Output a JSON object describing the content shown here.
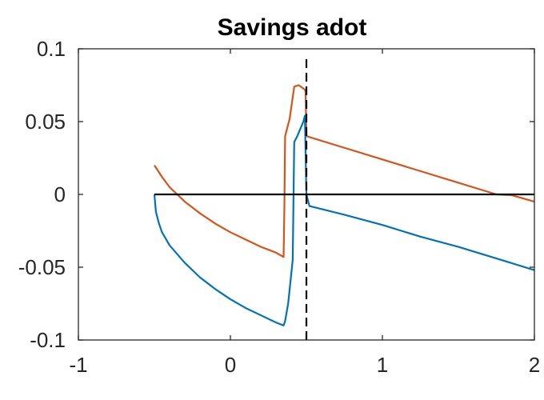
{
  "chart_data": {
    "type": "line",
    "title": "Savings adot",
    "xlabel": "",
    "ylabel": "",
    "xlim": [
      -1,
      2
    ],
    "ylim": [
      -0.1,
      0.1
    ],
    "grid": false,
    "legend": "none",
    "x_ticks": [
      -1,
      0,
      1,
      2
    ],
    "x_tick_labels": [
      "-1",
      "0",
      "1",
      "2"
    ],
    "y_ticks": [
      -0.1,
      -0.05,
      0,
      0.05,
      0.1
    ],
    "y_tick_labels": [
      "-0.1",
      "-0.05",
      "0",
      "0.05",
      "0.1"
    ],
    "series": [
      {
        "color": "#d95319",
        "x": [
          -0.5,
          -0.45,
          -0.4,
          -0.3,
          -0.2,
          -0.1,
          0.0,
          0.1,
          0.2,
          0.3,
          0.35,
          0.355,
          0.36,
          0.39,
          0.42,
          0.45,
          0.49,
          0.495,
          0.5,
          0.75,
          1.0,
          1.25,
          1.5,
          1.75,
          1.85,
          2.0
        ],
        "y": [
          0.02,
          0.012,
          0.005,
          -0.005,
          -0.013,
          -0.02,
          -0.026,
          -0.031,
          -0.036,
          -0.04,
          -0.043,
          -0.01,
          0.04,
          0.052,
          0.074,
          0.075,
          0.072,
          0.07,
          0.04,
          0.032,
          0.024,
          0.016,
          0.008,
          0.0,
          -0.0005,
          -0.005
        ]
      },
      {
        "color": "#0072bd",
        "x": [
          -0.5,
          -0.49,
          -0.47,
          -0.45,
          -0.4,
          -0.3,
          -0.2,
          -0.1,
          0.0,
          0.1,
          0.2,
          0.3,
          0.35,
          0.36,
          0.38,
          0.4,
          0.41,
          0.42,
          0.44,
          0.46,
          0.48,
          0.49,
          0.5,
          0.52,
          0.75,
          1.0,
          1.25,
          1.5,
          1.75,
          2.0
        ],
        "y": [
          0.0,
          -0.012,
          -0.02,
          -0.026,
          -0.035,
          -0.047,
          -0.057,
          -0.065,
          -0.072,
          -0.078,
          -0.083,
          -0.088,
          -0.09,
          -0.087,
          -0.075,
          -0.055,
          -0.045,
          0.036,
          0.04,
          0.045,
          0.05,
          0.054,
          0.0,
          -0.008,
          -0.014,
          -0.021,
          -0.029,
          -0.036,
          -0.044,
          -0.052
        ]
      }
    ],
    "reference_lines": [
      {
        "orientation": "horizontal",
        "value": 0,
        "color": "#000000",
        "x_from": -0.5,
        "x_to": 2,
        "style": "solid"
      },
      {
        "orientation": "vertical",
        "value": 0.5,
        "color": "#000000",
        "style": "dashed"
      }
    ]
  }
}
